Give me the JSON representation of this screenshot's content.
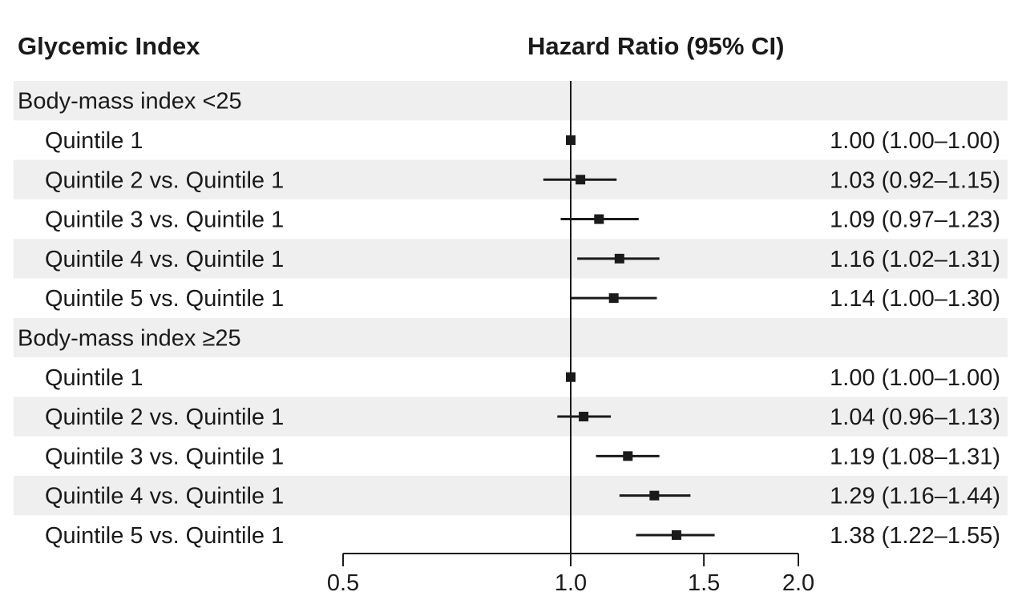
{
  "chart_data": {
    "type": "forest",
    "title": "",
    "left_header": "Glycemic Index",
    "right_header": "Hazard Ratio (95% CI)",
    "x_scale": "log",
    "xlim": [
      0.5,
      2.0
    ],
    "ticks": [
      {
        "value": 0.5,
        "label": "0.5"
      },
      {
        "value": 1.0,
        "label": "1.0"
      },
      {
        "value": 1.5,
        "label": "1.5"
      },
      {
        "value": 2.0,
        "label": "2.0"
      }
    ],
    "reference_line": 1.0,
    "rows": [
      {
        "kind": "group",
        "label": "Body-mass index <25"
      },
      {
        "kind": "item",
        "label": "Quintile 1",
        "hr": 1.0,
        "lo": 1.0,
        "hi": 1.0,
        "text": "1.00 (1.00–1.00)"
      },
      {
        "kind": "item",
        "label": "Quintile 2 vs. Quintile 1",
        "hr": 1.03,
        "lo": 0.92,
        "hi": 1.15,
        "text": "1.03 (0.92–1.15)"
      },
      {
        "kind": "item",
        "label": "Quintile 3 vs. Quintile 1",
        "hr": 1.09,
        "lo": 0.97,
        "hi": 1.23,
        "text": "1.09 (0.97–1.23)"
      },
      {
        "kind": "item",
        "label": "Quintile 4 vs. Quintile 1",
        "hr": 1.16,
        "lo": 1.02,
        "hi": 1.31,
        "text": "1.16 (1.02–1.31)"
      },
      {
        "kind": "item",
        "label": "Quintile 5 vs. Quintile 1",
        "hr": 1.14,
        "lo": 1.0,
        "hi": 1.3,
        "text": "1.14 (1.00–1.30)"
      },
      {
        "kind": "group",
        "label": "Body-mass index ≥25"
      },
      {
        "kind": "item",
        "label": "Quintile 1",
        "hr": 1.0,
        "lo": 1.0,
        "hi": 1.0,
        "text": "1.00 (1.00–1.00)"
      },
      {
        "kind": "item",
        "label": "Quintile 2 vs. Quintile 1",
        "hr": 1.04,
        "lo": 0.96,
        "hi": 1.13,
        "text": "1.04 (0.96–1.13)"
      },
      {
        "kind": "item",
        "label": "Quintile 3 vs. Quintile 1",
        "hr": 1.19,
        "lo": 1.08,
        "hi": 1.31,
        "text": "1.19 (1.08–1.31)"
      },
      {
        "kind": "item",
        "label": "Quintile 4 vs. Quintile 1",
        "hr": 1.29,
        "lo": 1.16,
        "hi": 1.44,
        "text": "1.29 (1.16–1.44)"
      },
      {
        "kind": "item",
        "label": "Quintile 5 vs. Quintile 1",
        "hr": 1.38,
        "lo": 1.22,
        "hi": 1.55,
        "text": "1.38 (1.22–1.55)"
      }
    ],
    "colors": {
      "stripe": "#efefef",
      "ink": "#1a1a1a"
    }
  }
}
